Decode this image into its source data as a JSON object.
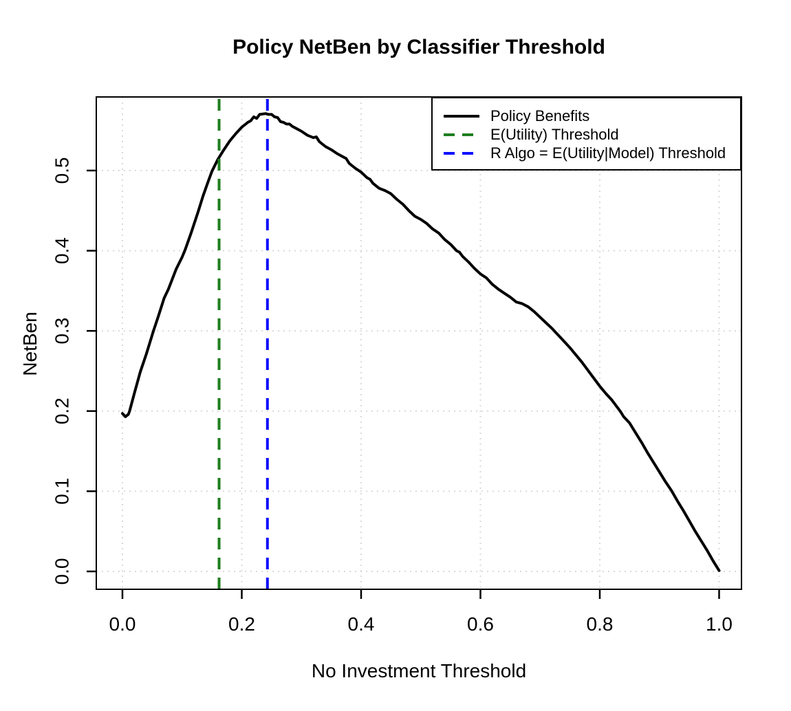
{
  "title": "Policy NetBen by Classifier Threshold",
  "x_axis": {
    "label": "No Investment Threshold",
    "ticks": [
      {
        "value": 0.0,
        "label": "0.0"
      },
      {
        "value": 0.2,
        "label": "0.2"
      },
      {
        "value": 0.4,
        "label": "0.4"
      },
      {
        "value": 0.6,
        "label": "0.6"
      },
      {
        "value": 0.8,
        "label": "0.8"
      },
      {
        "value": 1.0,
        "label": "1.0"
      }
    ]
  },
  "y_axis": {
    "label": "NetBen",
    "ticks": [
      {
        "value": 0.0,
        "label": "0.0"
      },
      {
        "value": 0.1,
        "label": "0.1"
      },
      {
        "value": 0.2,
        "label": "0.2"
      },
      {
        "value": 0.3,
        "label": "0.3"
      },
      {
        "value": 0.4,
        "label": "0.4"
      },
      {
        "value": 0.5,
        "label": "0.5"
      }
    ]
  },
  "legend": {
    "items": [
      {
        "label": "Policy Benefits",
        "color": "#000000",
        "dash": "solid"
      },
      {
        "label": "E(Utility) Threshold",
        "color": "#1e7e1e",
        "dash": "dashed"
      },
      {
        "label": "R Algo = E(Utility|Model) Threshold",
        "color": "#0b0bff",
        "dash": "dashed"
      }
    ]
  },
  "colors": {
    "curve": "#000000",
    "green_threshold": "#1e7e1e",
    "blue_threshold": "#0b0bff",
    "grid": "#d9d9d9",
    "axis": "#000000",
    "background": "#ffffff"
  },
  "chart_data": {
    "type": "line",
    "title": "Policy NetBen by Classifier Threshold",
    "xlabel": "No Investment Threshold",
    "ylabel": "NetBen",
    "xlim": [
      0.0,
      1.0
    ],
    "ylim": [
      0.0,
      0.571
    ],
    "grid": "dotted-lightgray-at-every-tick",
    "legend_position": "topright",
    "x_ticks": [
      0.0,
      0.2,
      0.4,
      0.6,
      0.8,
      1.0
    ],
    "y_ticks": [
      0.0,
      0.1,
      0.2,
      0.3,
      0.4,
      0.5
    ],
    "series": [
      {
        "name": "Policy Benefits",
        "color": "#000000",
        "style": "solid",
        "peak": {
          "x": 0.24,
          "y": 0.571
        },
        "x": [
          0.0,
          0.005,
          0.01,
          0.012,
          0.02,
          0.03,
          0.04,
          0.052,
          0.06,
          0.07,
          0.077,
          0.09,
          0.1,
          0.105,
          0.115,
          0.127,
          0.135,
          0.143,
          0.15,
          0.16,
          0.17,
          0.18,
          0.19,
          0.2,
          0.21,
          0.215,
          0.22,
          0.225,
          0.23,
          0.24,
          0.245,
          0.25,
          0.255,
          0.26,
          0.265,
          0.27,
          0.275,
          0.28,
          0.285,
          0.29,
          0.3,
          0.31,
          0.32,
          0.325,
          0.33,
          0.34,
          0.35,
          0.36,
          0.37,
          0.375,
          0.38,
          0.39,
          0.4,
          0.41,
          0.415,
          0.42,
          0.43,
          0.44,
          0.45,
          0.46,
          0.47,
          0.48,
          0.49,
          0.5,
          0.51,
          0.52,
          0.53,
          0.54,
          0.55,
          0.56,
          0.565,
          0.57,
          0.58,
          0.59,
          0.6,
          0.61,
          0.62,
          0.63,
          0.64,
          0.65,
          0.66,
          0.67,
          0.68,
          0.69,
          0.7,
          0.71,
          0.72,
          0.725,
          0.73,
          0.74,
          0.75,
          0.76,
          0.77,
          0.78,
          0.79,
          0.8,
          0.81,
          0.82,
          0.83,
          0.835,
          0.84,
          0.85,
          0.86,
          0.87,
          0.88,
          0.89,
          0.9,
          0.905,
          0.91,
          0.92,
          0.93,
          0.94,
          0.95,
          0.96,
          0.97,
          0.98,
          0.99,
          1.0
        ],
        "y": [
          0.197,
          0.193,
          0.196,
          0.2,
          0.222,
          0.249,
          0.271,
          0.3,
          0.318,
          0.341,
          0.352,
          0.377,
          0.392,
          0.401,
          0.422,
          0.449,
          0.468,
          0.485,
          0.499,
          0.514,
          0.526,
          0.537,
          0.546,
          0.554,
          0.56,
          0.562,
          0.567,
          0.565,
          0.57,
          0.571,
          0.57,
          0.57,
          0.567,
          0.566,
          0.561,
          0.56,
          0.558,
          0.558,
          0.555,
          0.553,
          0.549,
          0.544,
          0.541,
          0.542,
          0.536,
          0.53,
          0.526,
          0.521,
          0.517,
          0.515,
          0.509,
          0.503,
          0.498,
          0.491,
          0.489,
          0.484,
          0.478,
          0.475,
          0.471,
          0.464,
          0.458,
          0.45,
          0.443,
          0.439,
          0.434,
          0.427,
          0.422,
          0.414,
          0.408,
          0.4,
          0.398,
          0.393,
          0.386,
          0.378,
          0.371,
          0.366,
          0.358,
          0.352,
          0.347,
          0.342,
          0.336,
          0.334,
          0.33,
          0.324,
          0.317,
          0.31,
          0.303,
          0.299,
          0.295,
          0.287,
          0.279,
          0.27,
          0.261,
          0.251,
          0.241,
          0.231,
          0.222,
          0.214,
          0.204,
          0.199,
          0.193,
          0.185,
          0.173,
          0.161,
          0.148,
          0.136,
          0.124,
          0.118,
          0.112,
          0.101,
          0.088,
          0.076,
          0.063,
          0.05,
          0.038,
          0.026,
          0.013,
          0.001
        ]
      }
    ],
    "vlines": [
      {
        "name": "E(Utility) Threshold",
        "x": 0.162,
        "color": "#1e7e1e",
        "style": "dashed"
      },
      {
        "name": "R Algo = E(Utility|Model) Threshold",
        "x": 0.243,
        "color": "#0b0bff",
        "style": "dashed"
      }
    ]
  }
}
